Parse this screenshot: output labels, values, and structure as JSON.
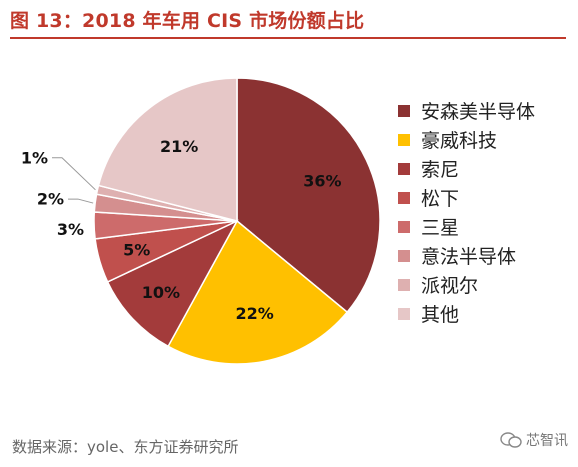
{
  "title": "图 13：2018 年车用 CIS 市场份额占比",
  "source": "数据来源：yole、东方证券研究所",
  "watermark": "芯智讯",
  "chart_data": {
    "type": "pie",
    "title": "图 13：2018 年车用 CIS 市场份额占比",
    "legend_position": "right",
    "slices": [
      {
        "name": "安森美半导体",
        "value": 36,
        "label": "36%",
        "color": "#8b3232"
      },
      {
        "name": "豪威科技",
        "value": 22,
        "label": "22%",
        "color": "#ffc000"
      },
      {
        "name": "索尼",
        "value": 10,
        "label": "10%",
        "color": "#a33b3b"
      },
      {
        "name": "松下",
        "value": 5,
        "label": "5%",
        "color": "#c0504d"
      },
      {
        "name": "三星",
        "value": 3,
        "label": "3%",
        "color": "#cd6b6b"
      },
      {
        "name": "意法半导体",
        "value": 2,
        "label": "2%",
        "color": "#d48f8f"
      },
      {
        "name": "派视尔",
        "value": 1,
        "label": "1%",
        "color": "#deb0b0"
      },
      {
        "name": "其他",
        "value": 21,
        "label": "21%",
        "color": "#e6c7c7"
      }
    ]
  }
}
